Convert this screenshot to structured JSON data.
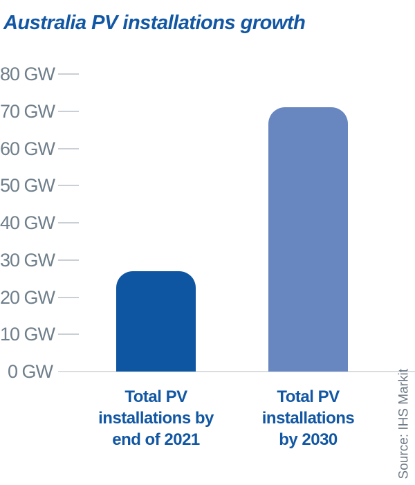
{
  "title": "Australia PV installations growth",
  "source_label": "Source: IHS Markit",
  "colors": {
    "title_text": "#1257a3",
    "axis_text": "#6e7e8a",
    "tick_line": "#c9cfd4",
    "baseline": "#d9dde0",
    "category_text": "#1257a3",
    "bar_2021": "#0f56a2",
    "bar_2030": "#6886c0"
  },
  "chart_data": {
    "type": "bar",
    "title": "Australia PV installations growth",
    "unit": "GW",
    "ylabel": "",
    "ylim": [
      0,
      80
    ],
    "legend": "none",
    "grid": "short tick dashes left of plot, full baseline at 0",
    "categories": [
      "Total PV\ninstallations by\nend of 2021",
      "Total PV\ninstallations\nby 2030"
    ],
    "category_names": [
      "bar-end-of-2021",
      "bar-by-2030"
    ],
    "values": [
      27,
      71
    ],
    "bar_colors": [
      "#0f56a2",
      "#6886c0"
    ],
    "y_ticks": [
      {
        "value": 80,
        "label": "80 GW"
      },
      {
        "value": 70,
        "label": "70 GW"
      },
      {
        "value": 60,
        "label": "60 GW"
      },
      {
        "value": 50,
        "label": "50 GW"
      },
      {
        "value": 40,
        "label": "40 GW"
      },
      {
        "value": 30,
        "label": "30 GW"
      },
      {
        "value": 20,
        "label": "20 GW"
      },
      {
        "value": 10,
        "label": "10 GW"
      },
      {
        "value": 0,
        "label": "0 GW"
      }
    ],
    "source": "Source: IHS Markit"
  }
}
